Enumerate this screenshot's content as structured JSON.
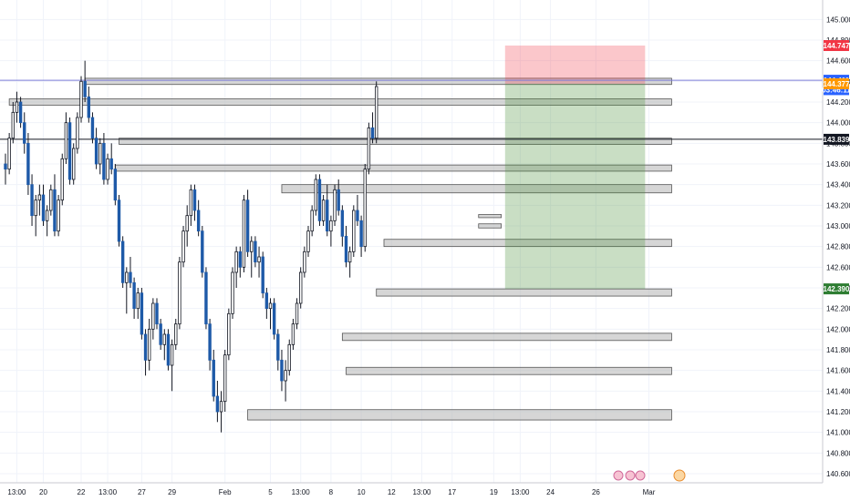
{
  "chart_data": {
    "type": "candlestick",
    "instrument_hint": "",
    "y_axis": {
      "ylim": [
        140.6,
        145.1
      ],
      "ticks": [
        "145.000",
        "144.800",
        "144.600",
        "144.400",
        "144.200",
        "144.000",
        "143.800",
        "143.600",
        "143.400",
        "143.200",
        "143.000",
        "142.800",
        "142.600",
        "142.400",
        "142.200",
        "142.000",
        "141.800",
        "141.600",
        "141.400",
        "141.200",
        "141.000",
        "140.800",
        "140.600"
      ]
    },
    "x_axis": {
      "ticks": [
        {
          "label": "13:00",
          "i": 3
        },
        {
          "label": "20",
          "i": 10
        },
        {
          "label": "22",
          "i": 20
        },
        {
          "label": "13:00",
          "i": 27
        },
        {
          "label": "27",
          "i": 36
        },
        {
          "label": "29",
          "i": 44
        },
        {
          "label": "Feb",
          "i": 58
        },
        {
          "label": "5",
          "i": 70
        },
        {
          "label": "13:00",
          "i": 78
        },
        {
          "label": "8",
          "i": 86
        },
        {
          "label": "10",
          "i": 94
        },
        {
          "label": "12",
          "i": 102
        },
        {
          "label": "13:00",
          "i": 110
        },
        {
          "label": "17",
          "i": 118
        },
        {
          "label": "19",
          "i": 129
        },
        {
          "label": "13:00",
          "i": 136
        },
        {
          "label": "24",
          "i": 144
        },
        {
          "label": "26",
          "i": 156
        },
        {
          "label": "Mar",
          "i": 170
        }
      ]
    },
    "price_tags": [
      {
        "value": 144.747,
        "label": "144.747",
        "color": "#f23645"
      },
      {
        "value": 144.411,
        "label": "144.411",
        "color": "#2962ff"
      },
      {
        "value": 144.32,
        "label": "03:46:11",
        "color": "#2962ff"
      },
      {
        "value": 144.377,
        "label": "144.377",
        "color": "#ff9800"
      },
      {
        "value": 143.839,
        "label": "143.839",
        "color": "#131722"
      },
      {
        "value": 142.39,
        "label": "142.390",
        "color": "#2e7d32"
      }
    ],
    "position": {
      "type": "short",
      "entry": 144.377,
      "stop": 144.747,
      "target": 142.39,
      "start_i": 132,
      "end_i": 169
    },
    "horizontal_lines": [
      {
        "value": 144.411,
        "color": "#7b7bd6"
      },
      {
        "value": 143.839,
        "color": "#131722"
      }
    ],
    "zones": [
      {
        "top": 144.43,
        "bottom": 144.37,
        "start_i": 21,
        "end_i": 176
      },
      {
        "top": 144.23,
        "bottom": 144.17,
        "start_i": 1,
        "end_i": 176
      },
      {
        "top": 143.85,
        "bottom": 143.79,
        "start_i": 30,
        "end_i": 176
      },
      {
        "top": 143.59,
        "bottom": 143.53,
        "start_i": 29,
        "end_i": 176
      },
      {
        "top": 143.4,
        "bottom": 143.32,
        "start_i": 73,
        "end_i": 176
      },
      {
        "top": 142.87,
        "bottom": 142.8,
        "start_i": 100,
        "end_i": 176
      },
      {
        "top": 142.39,
        "bottom": 142.32,
        "start_i": 98,
        "end_i": 176
      },
      {
        "top": 141.96,
        "bottom": 141.89,
        "start_i": 89,
        "end_i": 176
      },
      {
        "top": 141.63,
        "bottom": 141.56,
        "start_i": 90,
        "end_i": 176
      },
      {
        "top": 141.22,
        "bottom": 141.12,
        "start_i": 64,
        "end_i": 176
      },
      {
        "top": 143.11,
        "bottom": 143.08,
        "start_i": 125,
        "end_i": 131
      },
      {
        "top": 143.02,
        "bottom": 142.98,
        "start_i": 125,
        "end_i": 131
      }
    ],
    "candles": [
      [
        143.6,
        143.7,
        143.4,
        143.55
      ],
      [
        143.55,
        143.9,
        143.5,
        143.85
      ],
      [
        143.85,
        144.2,
        143.8,
        144.1
      ],
      [
        144.1,
        144.3,
        144.0,
        144.2
      ],
      [
        144.2,
        144.25,
        143.95,
        144.0
      ],
      [
        144.0,
        144.1,
        143.7,
        143.8
      ],
      [
        143.8,
        143.9,
        143.3,
        143.4
      ],
      [
        143.4,
        143.5,
        143.0,
        143.1
      ],
      [
        143.1,
        143.3,
        142.9,
        143.25
      ],
      [
        143.25,
        143.4,
        143.1,
        143.3
      ],
      [
        143.3,
        143.4,
        143.0,
        143.05
      ],
      [
        143.05,
        143.2,
        142.9,
        143.15
      ],
      [
        143.15,
        143.4,
        143.1,
        143.35
      ],
      [
        143.35,
        143.5,
        142.9,
        142.95
      ],
      [
        142.95,
        143.3,
        142.9,
        143.25
      ],
      [
        143.25,
        143.7,
        143.2,
        143.65
      ],
      [
        143.65,
        144.1,
        143.6,
        144.0
      ],
      [
        144.0,
        144.05,
        143.4,
        143.45
      ],
      [
        143.45,
        143.8,
        143.4,
        143.75
      ],
      [
        143.75,
        144.1,
        143.7,
        144.05
      ],
      [
        144.05,
        144.45,
        144.0,
        144.4
      ],
      [
        144.4,
        144.6,
        144.2,
        144.25
      ],
      [
        144.25,
        144.35,
        144.0,
        144.05
      ],
      [
        144.05,
        144.1,
        143.8,
        143.85
      ],
      [
        143.85,
        143.95,
        143.55,
        143.6
      ],
      [
        143.6,
        143.85,
        143.5,
        143.8
      ],
      [
        143.8,
        143.9,
        143.4,
        143.45
      ],
      [
        143.45,
        143.7,
        143.4,
        143.65
      ],
      [
        143.65,
        143.8,
        143.5,
        143.55
      ],
      [
        143.55,
        143.6,
        143.2,
        143.25
      ],
      [
        143.25,
        143.3,
        142.8,
        142.85
      ],
      [
        142.85,
        142.9,
        142.4,
        142.45
      ],
      [
        142.45,
        142.6,
        142.15,
        142.55
      ],
      [
        142.55,
        142.7,
        142.4,
        142.45
      ],
      [
        142.45,
        142.5,
        142.1,
        142.2
      ],
      [
        142.2,
        142.4,
        142.1,
        142.35
      ],
      [
        142.35,
        142.4,
        141.9,
        141.95
      ],
      [
        141.95,
        142.0,
        141.55,
        141.7
      ],
      [
        141.7,
        142.1,
        141.6,
        142.0
      ],
      [
        142.0,
        142.3,
        141.9,
        142.25
      ],
      [
        142.25,
        142.3,
        142.0,
        142.05
      ],
      [
        142.05,
        142.1,
        141.8,
        141.85
      ],
      [
        141.85,
        142.0,
        141.7,
        141.95
      ],
      [
        141.95,
        142.0,
        141.6,
        141.65
      ],
      [
        141.65,
        141.9,
        141.4,
        141.85
      ],
      [
        141.85,
        142.1,
        141.8,
        142.05
      ],
      [
        142.05,
        142.7,
        142.0,
        142.65
      ],
      [
        142.65,
        143.0,
        142.6,
        142.95
      ],
      [
        142.95,
        143.2,
        142.8,
        143.1
      ],
      [
        143.1,
        143.4,
        143.0,
        143.35
      ],
      [
        143.35,
        143.4,
        143.05,
        143.15
      ],
      [
        143.15,
        143.25,
        142.9,
        142.95
      ],
      [
        142.95,
        143.0,
        142.5,
        142.55
      ],
      [
        142.55,
        142.6,
        142.0,
        142.05
      ],
      [
        142.05,
        142.1,
        141.6,
        141.7
      ],
      [
        141.7,
        141.8,
        141.3,
        141.35
      ],
      [
        141.35,
        141.5,
        141.1,
        141.2
      ],
      [
        141.2,
        141.4,
        141.0,
        141.3
      ],
      [
        141.3,
        141.8,
        141.2,
        141.75
      ],
      [
        141.75,
        142.2,
        141.7,
        142.15
      ],
      [
        142.15,
        142.6,
        142.1,
        142.55
      ],
      [
        142.55,
        142.8,
        142.4,
        142.75
      ],
      [
        142.75,
        142.8,
        142.5,
        142.6
      ],
      [
        142.6,
        143.3,
        142.55,
        143.25
      ],
      [
        143.25,
        143.35,
        142.7,
        142.75
      ],
      [
        142.75,
        142.9,
        142.5,
        142.85
      ],
      [
        142.85,
        142.9,
        142.6,
        142.65
      ],
      [
        142.65,
        142.8,
        142.5,
        142.7
      ],
      [
        142.7,
        142.75,
        142.3,
        142.35
      ],
      [
        142.35,
        142.4,
        142.1,
        142.2
      ],
      [
        142.2,
        142.3,
        142.0,
        142.25
      ],
      [
        142.25,
        142.3,
        141.9,
        141.95
      ],
      [
        141.95,
        142.0,
        141.6,
        141.7
      ],
      [
        141.7,
        141.8,
        141.4,
        141.5
      ],
      [
        141.5,
        141.7,
        141.3,
        141.6
      ],
      [
        141.6,
        141.9,
        141.55,
        141.85
      ],
      [
        141.85,
        142.1,
        141.8,
        142.05
      ],
      [
        142.05,
        142.3,
        142.0,
        142.25
      ],
      [
        142.25,
        142.6,
        142.2,
        142.55
      ],
      [
        142.55,
        142.8,
        142.5,
        142.75
      ],
      [
        142.75,
        143.0,
        142.7,
        142.95
      ],
      [
        142.95,
        143.2,
        142.9,
        143.15
      ],
      [
        143.15,
        143.5,
        143.1,
        143.45
      ],
      [
        143.45,
        143.5,
        143.0,
        143.05
      ],
      [
        143.05,
        143.3,
        143.0,
        143.25
      ],
      [
        143.25,
        143.4,
        142.9,
        142.95
      ],
      [
        142.95,
        143.1,
        142.8,
        143.05
      ],
      [
        143.05,
        143.4,
        143.0,
        143.35
      ],
      [
        143.35,
        143.45,
        143.1,
        143.15
      ],
      [
        143.15,
        143.2,
        142.8,
        142.9
      ],
      [
        142.9,
        143.0,
        142.6,
        142.65
      ],
      [
        142.65,
        142.8,
        142.5,
        142.75
      ],
      [
        142.75,
        143.2,
        142.7,
        143.15
      ],
      [
        143.15,
        143.3,
        143.0,
        143.05
      ],
      [
        143.05,
        143.1,
        142.7,
        142.8
      ],
      [
        142.8,
        143.6,
        142.75,
        143.55
      ],
      [
        143.55,
        144.0,
        143.5,
        143.95
      ],
      [
        143.95,
        144.1,
        143.8,
        143.85
      ],
      [
        143.85,
        144.4,
        143.8,
        144.35
      ]
    ]
  }
}
